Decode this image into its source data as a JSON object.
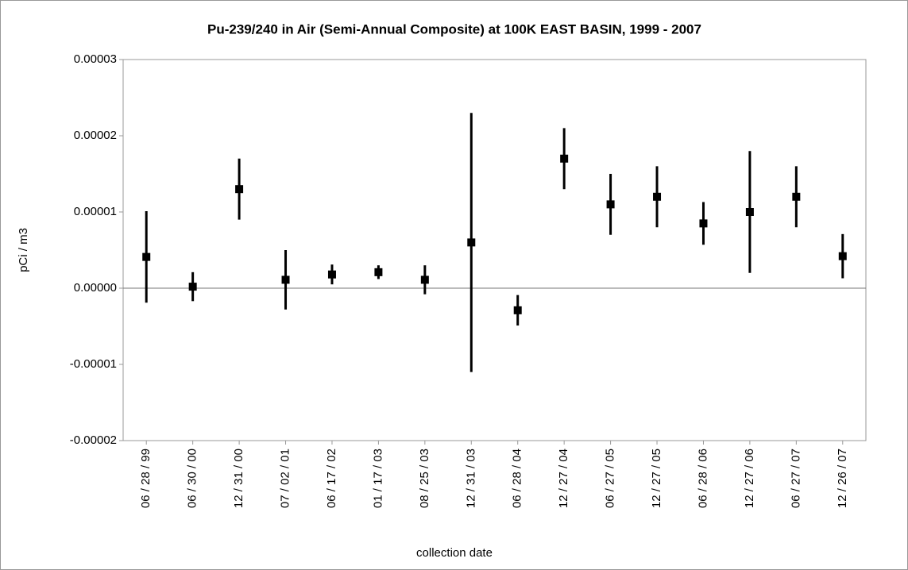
{
  "chart_data": {
    "type": "errorbar",
    "title": "Pu-239/240 in Air (Semi-Annual Composite) at 100K EAST BASIN, 1999 - 2007",
    "x_label": "collection date",
    "y_label": "pCi / m3",
    "categories": [
      "06 / 28 / 99",
      "06 / 30 / 00",
      "12 / 31 / 00",
      "07 / 02 / 01",
      "06 / 17 / 02",
      "01 / 17 / 03",
      "08 / 25 / 03",
      "12 / 31 / 03",
      "06 / 28 / 04",
      "12 / 27 / 04",
      "06 / 27 / 05",
      "12 / 27 / 05",
      "06 / 28 / 06",
      "12 / 27 / 06",
      "06 / 27 / 07",
      "12 / 26 / 07"
    ],
    "values": [
      4.1e-06,
      2e-07,
      1.3e-05,
      1.1e-06,
      1.8e-06,
      2.1e-06,
      1.1e-06,
      6e-06,
      -2.9e-06,
      1.7e-05,
      1.1e-05,
      1.2e-05,
      8.5e-06,
      1e-05,
      1.2e-05,
      4.2e-06
    ],
    "errors": [
      6e-06,
      1.9e-06,
      4e-06,
      3.9e-06,
      1.3e-06,
      9e-07,
      1.9e-06,
      1.7e-05,
      2e-06,
      4e-06,
      4e-06,
      4e-06,
      2.8e-06,
      8e-06,
      4e-06,
      2.9e-06
    ],
    "color": "#000000",
    "ylim": [
      -2e-05,
      3e-05
    ],
    "yticks": [
      {
        "value": -2e-05,
        "label": "-0.00002"
      },
      {
        "value": -1e-05,
        "label": "-0.00001"
      },
      {
        "value": 0,
        "label": "0.00000"
      },
      {
        "value": 1e-05,
        "label": "0.00001"
      },
      {
        "value": 2e-05,
        "label": "0.00002"
      },
      {
        "value": 3e-05,
        "label": "0.00003"
      }
    ],
    "zero_line": true
  }
}
